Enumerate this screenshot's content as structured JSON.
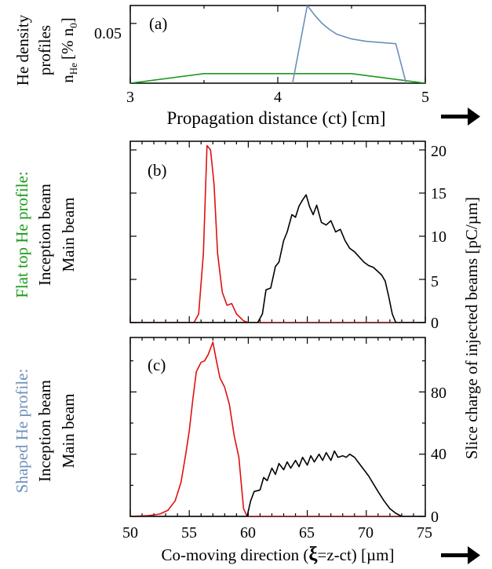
{
  "colors": {
    "axes": "#000000",
    "green": "#1a9a1a",
    "blue": "#6b8fb8",
    "red": "#e01010",
    "black": "#000000"
  },
  "panel_a": {
    "label": "(a)",
    "ylabel_lines": [
      "He density",
      "profiles",
      "n",
      "[% n",
      "]"
    ],
    "ylabel_sub_He": "He",
    "ylabel_sub_0": "0",
    "ytick": "0.05",
    "xticks": [
      "3",
      "4",
      "5"
    ],
    "xlabel": "Propagation distance (ct) [cm]"
  },
  "panel_b": {
    "label": "(b)",
    "left_title": "Flat top He profile:",
    "left_line1": "Inception beam",
    "left_line2": "Main beam",
    "yticks": [
      "0",
      "5",
      "10",
      "15",
      "20"
    ]
  },
  "panel_c": {
    "label": "(c)",
    "left_title": "Shaped He profile:",
    "left_line1": "Inception beam",
    "left_line2": "Main beam",
    "yticks": [
      "0",
      "40",
      "80"
    ],
    "xticks": [
      "50",
      "55",
      "60",
      "65",
      "70",
      "75"
    ]
  },
  "right_ylabel": "Slice charge of injected beams [pC/µm]",
  "bottom_xlabel_pre": "Co-moving direction (",
  "bottom_xlabel_xi": "ξ",
  "bottom_xlabel_post": "=z-ct) [µm]",
  "chart_data": [
    {
      "type": "line",
      "panel": "(a)",
      "xlabel": "Propagation distance (ct) [cm]",
      "ylabel": "He density profiles n_He [% n_0]",
      "xlim": [
        3,
        5
      ],
      "ylim": [
        0,
        0.065
      ],
      "series": [
        {
          "name": "Flat top He profile",
          "color": "#1a9a1a",
          "x": [
            3.0,
            3.5,
            4.5,
            5.0
          ],
          "y": [
            0.0,
            0.008,
            0.008,
            0.0
          ]
        },
        {
          "name": "Shaped He profile",
          "color": "#6b8fb8",
          "x": [
            4.1,
            4.2,
            4.25,
            4.3,
            4.35,
            4.4,
            4.5,
            4.6,
            4.7,
            4.8,
            4.87
          ],
          "y": [
            0.0,
            0.065,
            0.057,
            0.05,
            0.045,
            0.041,
            0.037,
            0.035,
            0.034,
            0.033,
            0.0
          ]
        }
      ]
    },
    {
      "type": "line",
      "panel": "(b)",
      "xlabel": "Co-moving direction (ξ=z-ct) [µm]",
      "ylabel": "Slice charge of injected beams [pC/µm]",
      "xlim": [
        50,
        75
      ],
      "ylim": [
        0,
        21
      ],
      "series": [
        {
          "name": "Inception beam",
          "color": "#e01010",
          "x": [
            50,
            55.4,
            55.8,
            56.2,
            56.5,
            56.8,
            57.1,
            57.4,
            57.8,
            58.2,
            58.6,
            59.0,
            59.6,
            60,
            75
          ],
          "y": [
            0,
            0,
            1.0,
            8.0,
            20.5,
            20.0,
            16.0,
            8.0,
            3.5,
            2.0,
            2.2,
            1.0,
            0.2,
            0,
            0
          ]
        },
        {
          "name": "Main beam",
          "color": "#000000",
          "x": [
            50,
            60.8,
            61.2,
            61.5,
            61.9,
            62.3,
            62.6,
            63.0,
            63.3,
            63.7,
            64.0,
            64.3,
            64.6,
            64.9,
            65.2,
            65.5,
            65.8,
            66.2,
            66.6,
            67.0,
            67.4,
            67.8,
            68.2,
            68.6,
            69.0,
            69.4,
            69.8,
            70.2,
            70.6,
            71.0,
            71.3,
            71.6,
            71.9,
            72.2,
            72.5,
            75
          ],
          "y": [
            0,
            0,
            1.0,
            3.8,
            4.0,
            6.5,
            7.0,
            9.5,
            10.5,
            12.5,
            12.2,
            13.5,
            14.2,
            14.8,
            13.4,
            12.5,
            13.6,
            11.6,
            11.3,
            11.8,
            10.5,
            10.8,
            9.5,
            8.6,
            8.2,
            7.6,
            7.0,
            6.6,
            6.4,
            5.9,
            5.5,
            4.8,
            3.0,
            1.0,
            0,
            0
          ]
        }
      ]
    },
    {
      "type": "line",
      "panel": "(c)",
      "xlabel": "Co-moving direction (ξ=z-ct) [µm]",
      "ylabel": "Slice charge of injected beams [pC/µm]",
      "xlim": [
        50,
        75
      ],
      "ylim": [
        0,
        115
      ],
      "series": [
        {
          "name": "Inception beam",
          "color": "#e01010",
          "x": [
            50,
            51.5,
            52.5,
            53.2,
            53.8,
            54.3,
            54.7,
            55.0,
            55.3,
            55.6,
            56.0,
            56.3,
            56.6,
            57.0,
            57.3,
            57.6,
            58.0,
            58.4,
            58.8,
            59.2,
            59.6,
            59.9,
            75
          ],
          "y": [
            0,
            0.5,
            1.5,
            4,
            10,
            22,
            40,
            55,
            75,
            93,
            99,
            100,
            104,
            112,
            100,
            89,
            83,
            72,
            52,
            38,
            5,
            0,
            0
          ]
        },
        {
          "name": "Main beam",
          "color": "#000000",
          "x": [
            50,
            59.9,
            60.2,
            60.5,
            61.0,
            61.3,
            61.6,
            62.0,
            62.3,
            62.6,
            63.0,
            63.3,
            63.6,
            64.0,
            64.3,
            64.6,
            65.0,
            65.3,
            65.6,
            66.0,
            66.3,
            66.6,
            67.0,
            67.3,
            67.6,
            68.0,
            68.3,
            68.6,
            69.0,
            69.4,
            69.8,
            70.2,
            70.6,
            71.0,
            71.5,
            72.0,
            72.5,
            73.0,
            75
          ],
          "y": [
            0,
            0,
            10,
            16,
            17,
            25,
            23,
            31,
            27,
            34,
            30,
            35,
            31,
            36,
            32,
            38,
            33,
            39,
            35,
            40,
            36,
            41,
            36,
            42,
            38,
            39,
            38,
            40,
            38,
            34,
            30,
            26,
            21,
            16,
            10,
            5,
            2,
            0,
            0
          ]
        }
      ]
    }
  ]
}
